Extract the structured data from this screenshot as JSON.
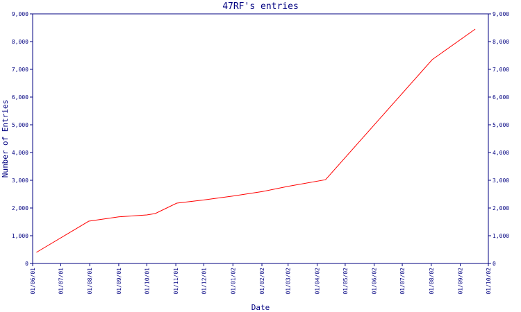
{
  "chart_data": {
    "type": "line",
    "title": "47RF's entries",
    "x_label": "Date",
    "y_label": "Number of Entries",
    "x": [
      "05/06/01",
      "31/07/01",
      "01/09/01",
      "01/10/01",
      "10/10/01",
      "02/11/01",
      "01/12/01",
      "01/01/02",
      "01/02/02",
      "01/03/02",
      "10/04/02",
      "02/08/02",
      "17/09/02"
    ],
    "series": [
      {
        "name": "entries",
        "color": "#ff0000",
        "values": [
          400,
          1525,
          1680,
          1750,
          1800,
          2175,
          2290,
          2430,
          2590,
          2780,
          3020,
          7350,
          8450
        ]
      }
    ],
    "xlim": [
      "01/06/01",
      "01/10/02"
    ],
    "xticks": [
      "01/06/01",
      "01/07/01",
      "01/08/01",
      "01/09/01",
      "01/10/01",
      "01/11/01",
      "01/12/01",
      "01/01/02",
      "01/02/02",
      "01/03/02",
      "01/04/02",
      "01/05/02",
      "01/06/02",
      "01/07/02",
      "01/08/02",
      "01/09/02",
      "01/10/02"
    ],
    "ylim": [
      0,
      9000
    ],
    "yticks": [
      0,
      {
        "value": 1000,
        "label": "1,000"
      },
      {
        "value": 2000,
        "label": "2,000"
      },
      {
        "value": 3000,
        "label": "3,000"
      },
      {
        "value": 4000,
        "label": "4,000"
      },
      {
        "value": 5000,
        "label": "5,000"
      },
      {
        "value": 6000,
        "label": "6,000"
      },
      {
        "value": 7000,
        "label": "7,000"
      },
      {
        "value": 8000,
        "label": "8,000"
      },
      {
        "value": 9000,
        "label": "9,000"
      }
    ],
    "axis_color": "#000080"
  }
}
